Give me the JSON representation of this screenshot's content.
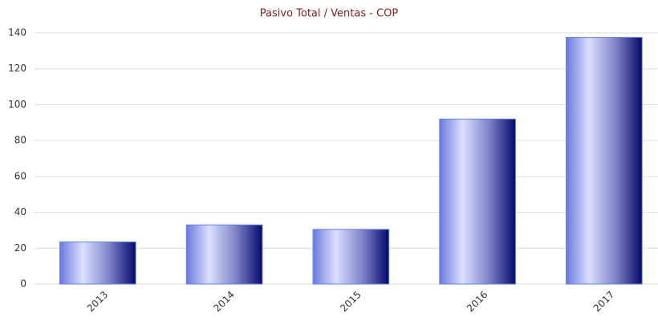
{
  "chart_data": {
    "type": "bar",
    "title": "Pasivo Total / Ventas - COP",
    "categories": [
      "2013",
      "2014",
      "2015",
      "2016",
      "2017"
    ],
    "values": [
      23.5,
      33,
      30.5,
      92,
      137.5
    ],
    "color": "#1a1f8a",
    "ylim": [
      0,
      140
    ],
    "yticks": [
      0,
      20,
      40,
      60,
      80,
      100,
      120,
      140
    ],
    "grid": true
  }
}
